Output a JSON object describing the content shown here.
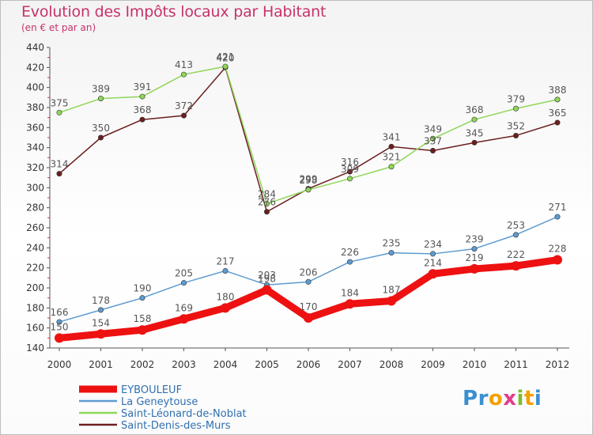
{
  "chart_data": {
    "type": "line",
    "title": "Evolution des Impôts locaux par Habitant",
    "subtitle": "(en € et par an)",
    "xlabel": "",
    "ylabel": "",
    "categories": [
      "2000",
      "2001",
      "2002",
      "2003",
      "2004",
      "2005",
      "2006",
      "2007",
      "2008",
      "2009",
      "2010",
      "2011",
      "2012"
    ],
    "ylim": [
      140,
      440
    ],
    "yticks": [
      140,
      160,
      180,
      200,
      220,
      240,
      260,
      280,
      300,
      320,
      340,
      360,
      380,
      400,
      420,
      440
    ],
    "grid": false,
    "legend_position": "bottom-left",
    "series": [
      {
        "name": "EYBOULEUF",
        "color": "#ee1111",
        "values": [
          150,
          154,
          158,
          169,
          180,
          198,
          170,
          184,
          187,
          214,
          219,
          222,
          228
        ]
      },
      {
        "name": "La Geneytouse",
        "color": "#5e9bd0",
        "values": [
          166,
          178,
          190,
          205,
          217,
          203,
          206,
          226,
          235,
          234,
          239,
          253,
          271
        ]
      },
      {
        "name": "Saint-Léonard-de-Noblat",
        "color": "#8fd65a",
        "values": [
          375,
          389,
          391,
          413,
          421,
          284,
          298,
          309,
          321,
          349,
          368,
          379,
          388
        ]
      },
      {
        "name": "Saint-Denis-des-Murs",
        "color": "#6b1f1f",
        "values": [
          314,
          350,
          368,
          372,
          420,
          276,
          299,
          316,
          341,
          337,
          345,
          352,
          365
        ]
      }
    ]
  },
  "logo": {
    "letters": [
      "P",
      "r",
      "o",
      "x",
      "i",
      "t",
      "i"
    ],
    "colors": [
      "#3a8fd0",
      "#3a8fd0",
      "#f5a000",
      "#e23d8c",
      "#7bbf2a",
      "#f5a000",
      "#3a8fd0"
    ]
  }
}
